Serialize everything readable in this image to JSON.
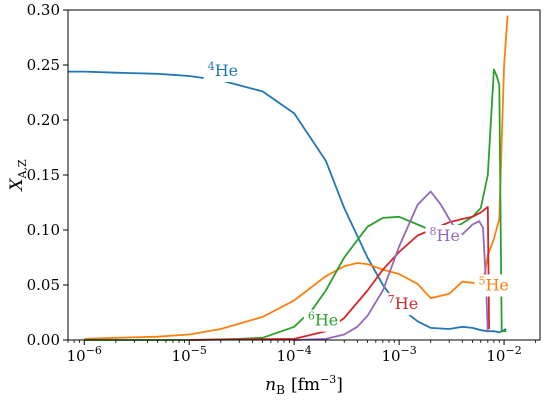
{
  "chart_data": {
    "type": "line",
    "x_scale": "log",
    "xlim": [
      7e-07,
      0.022
    ],
    "ylim": [
      0.0,
      0.3
    ],
    "xlabel": {
      "base": "n",
      "sub": "B",
      "unit": "[fm",
      "unit_exp": "−3",
      "unit_close": "]"
    },
    "ylabel": {
      "base": "X",
      "sub": "A,Z"
    },
    "x_ticks": [
      {
        "value": 1e-06,
        "base": "10",
        "exp": "−6"
      },
      {
        "value": 1e-05,
        "base": "10",
        "exp": "−5"
      },
      {
        "value": 0.0001,
        "base": "10",
        "exp": "−4"
      },
      {
        "value": 0.001,
        "base": "10",
        "exp": "−3"
      },
      {
        "value": 0.01,
        "base": "10",
        "exp": "−2"
      }
    ],
    "y_ticks": [
      {
        "value": 0.0,
        "label": "0.00"
      },
      {
        "value": 0.05,
        "label": "0.05"
      },
      {
        "value": 0.1,
        "label": "0.10"
      },
      {
        "value": 0.15,
        "label": "0.15"
      },
      {
        "value": 0.2,
        "label": "0.20"
      },
      {
        "value": 0.25,
        "label": "0.25"
      },
      {
        "value": 0.3,
        "label": "0.30"
      }
    ],
    "series": [
      {
        "mass": "4",
        "element": "He",
        "color": "#1f77b4",
        "label_at": [
          1.5e-05,
          0.24
        ],
        "x": [
          7e-07,
          1e-06,
          2e-06,
          5e-06,
          1e-05,
          2e-05,
          5e-05,
          0.0001,
          0.0002,
          0.0003,
          0.0005,
          0.0007,
          0.001,
          0.0015,
          0.002,
          0.003,
          0.004,
          0.005,
          0.006,
          0.007,
          0.008,
          0.009,
          0.0105
        ],
        "y": [
          0.244,
          0.244,
          0.243,
          0.242,
          0.24,
          0.236,
          0.226,
          0.206,
          0.163,
          0.12,
          0.075,
          0.05,
          0.03,
          0.017,
          0.011,
          0.01,
          0.012,
          0.011,
          0.009,
          0.008,
          0.008,
          0.007,
          0.01
        ]
      },
      {
        "mass": "5",
        "element": "He",
        "color": "#ff7f0e",
        "label_at": [
          0.0057,
          0.045
        ],
        "x": [
          1e-06,
          2e-06,
          5e-06,
          1e-05,
          2e-05,
          5e-05,
          0.0001,
          0.0002,
          0.0003,
          0.0004,
          0.0005,
          0.0007,
          0.001,
          0.0015,
          0.002,
          0.003,
          0.004,
          0.005,
          0.006,
          0.0066,
          0.007,
          0.008,
          0.009,
          0.01,
          0.0108
        ],
        "y": [
          0.001,
          0.002,
          0.003,
          0.005,
          0.01,
          0.021,
          0.036,
          0.058,
          0.067,
          0.07,
          0.069,
          0.064,
          0.06,
          0.051,
          0.038,
          0.042,
          0.053,
          0.052,
          0.05,
          0.062,
          0.077,
          0.092,
          0.11,
          0.25,
          0.295
        ]
      },
      {
        "mass": "6",
        "element": "He",
        "color": "#2ca02c",
        "label_at": [
          0.000135,
          0.013
        ],
        "x": [
          1e-06,
          1e-05,
          3e-05,
          5e-05,
          0.0001,
          0.00015,
          0.0002,
          0.0003,
          0.0005,
          0.0007,
          0.001,
          0.0015,
          0.002,
          0.003,
          0.004,
          0.005,
          0.006,
          0.007,
          0.008,
          0.0085,
          0.009,
          0.0095,
          0.0105
        ],
        "y": [
          0.0,
          0.0,
          0.001,
          0.002,
          0.012,
          0.028,
          0.045,
          0.075,
          0.103,
          0.111,
          0.112,
          0.105,
          0.1,
          0.1,
          0.106,
          0.112,
          0.12,
          0.15,
          0.246,
          0.24,
          0.232,
          0.008,
          0.008
        ]
      },
      {
        "mass": "7",
        "element": "He",
        "color": "#d62728",
        "label_at": [
          0.00078,
          0.028
        ],
        "x": [
          1e-05,
          0.0001,
          0.0002,
          0.0003,
          0.0005,
          0.0007,
          0.001,
          0.0015,
          0.002,
          0.003,
          0.004,
          0.005,
          0.006,
          0.007,
          0.0072
        ],
        "y": [
          0.0,
          0.001,
          0.008,
          0.02,
          0.045,
          0.064,
          0.08,
          0.095,
          0.1,
          0.107,
          0.11,
          0.112,
          0.116,
          0.121,
          0.01
        ]
      },
      {
        "mass": "8",
        "element": "He",
        "color": "#9467bd",
        "label_at": [
          0.00195,
          0.09
        ],
        "x": [
          0.0001,
          0.0002,
          0.0003,
          0.0004,
          0.0005,
          0.0007,
          0.001,
          0.0015,
          0.002,
          0.0025,
          0.003,
          0.0035,
          0.004,
          0.005,
          0.0058,
          0.0063,
          0.0067,
          0.007
        ],
        "y": [
          0.0,
          0.001,
          0.005,
          0.012,
          0.022,
          0.045,
          0.085,
          0.123,
          0.135,
          0.123,
          0.11,
          0.1,
          0.096,
          0.105,
          0.108,
          0.102,
          0.055,
          0.007
        ]
      }
    ]
  }
}
